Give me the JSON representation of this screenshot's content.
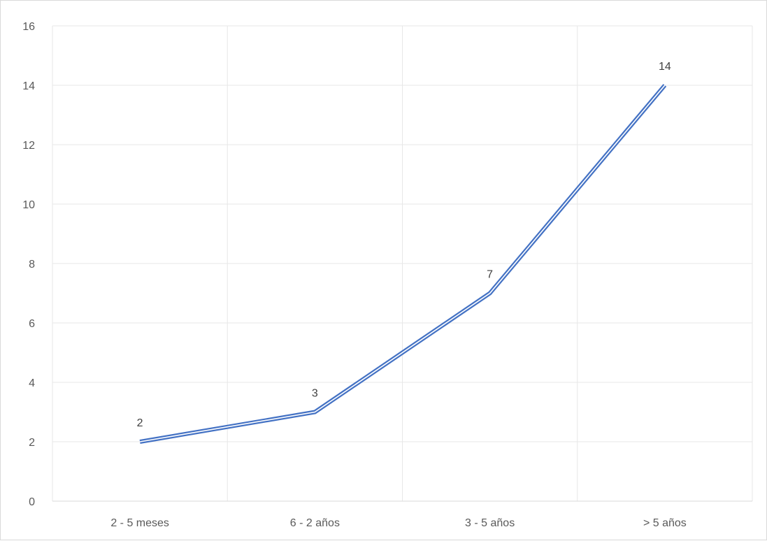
{
  "chart_data": {
    "type": "line",
    "title": "",
    "xlabel": "",
    "ylabel": "",
    "categories": [
      "2 - 5 meses",
      "6 - 2 años",
      "3 - 5 años",
      "> 5 años"
    ],
    "series": [
      {
        "values": [
          2,
          3,
          7,
          14
        ],
        "color": "#4472c4",
        "data_labels": [
          "2",
          "3",
          "7",
          "14"
        ]
      }
    ],
    "ylim": [
      0,
      16
    ],
    "yticks": [
      "0",
      "2",
      "4",
      "6",
      "8",
      "10",
      "12",
      "14",
      "16"
    ],
    "grid": true,
    "legend": "none",
    "colors": {
      "line": "#4472c4",
      "grid": "#e7e7e7",
      "axis": "#d9d9d9",
      "text": "#595959"
    }
  }
}
